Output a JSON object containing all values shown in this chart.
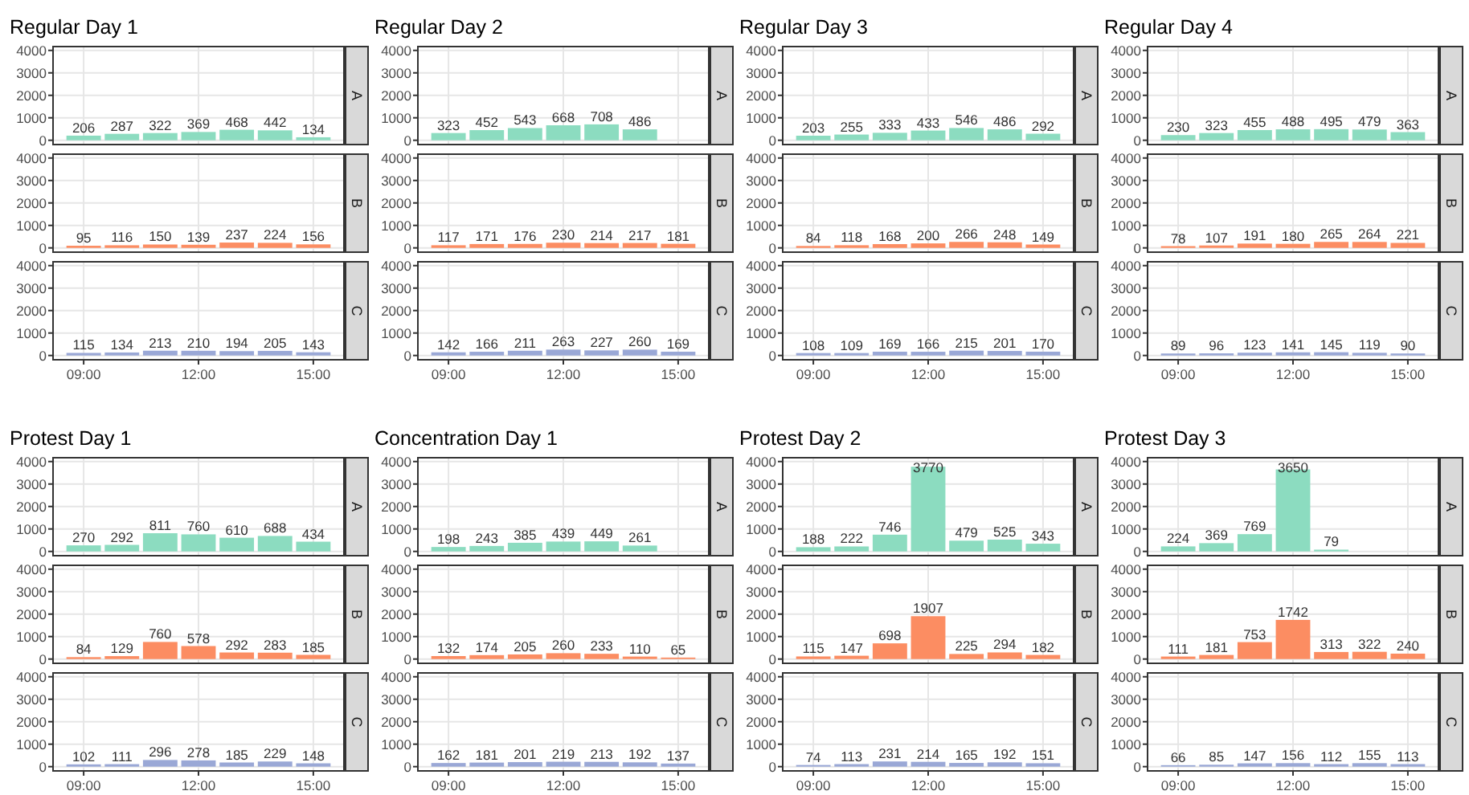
{
  "chart_data": [
    {
      "type": "bar",
      "title": "Regular Day 1",
      "y2label": "A",
      "x": [
        9,
        10,
        11,
        12,
        13,
        14,
        15
      ],
      "values": [
        206,
        287,
        322,
        369,
        468,
        442,
        134
      ],
      "color": "#8cdcc0",
      "xlim": [
        8.2,
        15.8
      ],
      "xticks": [
        9,
        12,
        15
      ],
      "ylim": [
        -190,
        4170
      ],
      "yticks": [
        0,
        1000,
        2000,
        3000,
        4000
      ],
      "grid": true,
      "data_labels": true,
      "tick_labels": "y"
    },
    {
      "type": "bar",
      "y2label": "B",
      "x": [
        9,
        10,
        11,
        12,
        13,
        14,
        15
      ],
      "values": [
        95,
        116,
        150,
        139,
        237,
        224,
        156
      ],
      "color": "#fc8d62",
      "xlim": [
        8.2,
        15.8
      ],
      "xticks": [
        9,
        12,
        15
      ],
      "ylim": [
        -190,
        4170
      ],
      "yticks": [
        0,
        1000,
        2000,
        3000,
        4000
      ],
      "grid": true,
      "data_labels": true,
      "tick_labels": "y"
    },
    {
      "type": "bar",
      "y2label": "C",
      "x": [
        9,
        10,
        11,
        12,
        13,
        14,
        15
      ],
      "values": [
        115,
        134,
        213,
        210,
        194,
        205,
        143
      ],
      "color": "#9aa8d6",
      "xlim": [
        8.2,
        15.8
      ],
      "xticks": [
        {
          "value": 9,
          "label": "09:00"
        },
        {
          "value": 12,
          "label": "12:00"
        },
        {
          "value": 15,
          "label": "15:00"
        }
      ],
      "ylim": [
        -190,
        4170
      ],
      "yticks": [
        0,
        1000,
        2000,
        3000,
        4000
      ],
      "grid": true,
      "data_labels": true
    },
    {
      "type": "bar",
      "title": "Regular Day 2",
      "y2label": "A",
      "x": [
        9,
        10,
        11,
        12,
        13,
        14
      ],
      "values": [
        323,
        452,
        543,
        668,
        708,
        486
      ],
      "color": "#8cdcc0",
      "xlim": [
        8.2,
        15.8
      ],
      "xticks": [
        9,
        12,
        15
      ],
      "ylim": [
        -190,
        4170
      ],
      "yticks": [
        0,
        1000,
        2000,
        3000,
        4000
      ],
      "grid": true,
      "data_labels": true,
      "tick_labels": "y"
    },
    {
      "type": "bar",
      "y2label": "B",
      "x": [
        9,
        10,
        11,
        12,
        13,
        14,
        15
      ],
      "values": [
        117,
        171,
        176,
        230,
        214,
        217,
        181
      ],
      "color": "#fc8d62",
      "xlim": [
        8.2,
        15.8
      ],
      "xticks": [
        9,
        12,
        15
      ],
      "ylim": [
        -190,
        4170
      ],
      "yticks": [
        0,
        1000,
        2000,
        3000,
        4000
      ],
      "grid": true,
      "data_labels": true,
      "tick_labels": "y"
    },
    {
      "type": "bar",
      "y2label": "C",
      "x": [
        9,
        10,
        11,
        12,
        13,
        14,
        15
      ],
      "values": [
        142,
        166,
        211,
        263,
        227,
        260,
        169
      ],
      "color": "#9aa8d6",
      "xlim": [
        8.2,
        15.8
      ],
      "xticks": [
        {
          "value": 9,
          "label": "09:00"
        },
        {
          "value": 12,
          "label": "12:00"
        },
        {
          "value": 15,
          "label": "15:00"
        }
      ],
      "ylim": [
        -190,
        4170
      ],
      "yticks": [
        0,
        1000,
        2000,
        3000,
        4000
      ],
      "grid": true,
      "data_labels": true
    },
    {
      "type": "bar",
      "title": "Regular Day 3",
      "y2label": "A",
      "x": [
        9,
        10,
        11,
        12,
        13,
        14,
        15
      ],
      "values": [
        203,
        255,
        333,
        433,
        546,
        486,
        292
      ],
      "color": "#8cdcc0",
      "xlim": [
        8.2,
        15.8
      ],
      "xticks": [
        9,
        12,
        15
      ],
      "ylim": [
        -190,
        4170
      ],
      "yticks": [
        0,
        1000,
        2000,
        3000,
        4000
      ],
      "grid": true,
      "data_labels": true,
      "tick_labels": "y"
    },
    {
      "type": "bar",
      "y2label": "B",
      "x": [
        9,
        10,
        11,
        12,
        13,
        14,
        15
      ],
      "values": [
        84,
        118,
        168,
        200,
        266,
        248,
        149
      ],
      "color": "#fc8d62",
      "xlim": [
        8.2,
        15.8
      ],
      "xticks": [
        9,
        12,
        15
      ],
      "ylim": [
        -190,
        4170
      ],
      "yticks": [
        0,
        1000,
        2000,
        3000,
        4000
      ],
      "grid": true,
      "data_labels": true,
      "tick_labels": "y"
    },
    {
      "type": "bar",
      "y2label": "C",
      "x": [
        9,
        10,
        11,
        12,
        13,
        14,
        15
      ],
      "values": [
        108,
        109,
        169,
        166,
        215,
        201,
        170
      ],
      "color": "#9aa8d6",
      "xlim": [
        8.2,
        15.8
      ],
      "xticks": [
        {
          "value": 9,
          "label": "09:00"
        },
        {
          "value": 12,
          "label": "12:00"
        },
        {
          "value": 15,
          "label": "15:00"
        }
      ],
      "ylim": [
        -190,
        4170
      ],
      "yticks": [
        0,
        1000,
        2000,
        3000,
        4000
      ],
      "grid": true,
      "data_labels": true
    },
    {
      "type": "bar",
      "title": "Regular Day 4",
      "y2label": "A",
      "x": [
        9,
        10,
        11,
        12,
        13,
        14,
        15
      ],
      "values": [
        230,
        323,
        455,
        488,
        495,
        479,
        363
      ],
      "color": "#8cdcc0",
      "xlim": [
        8.2,
        15.8
      ],
      "xticks": [
        9,
        12,
        15
      ],
      "ylim": [
        -190,
        4170
      ],
      "yticks": [
        0,
        1000,
        2000,
        3000,
        4000
      ],
      "grid": true,
      "data_labels": true,
      "tick_labels": "y"
    },
    {
      "type": "bar",
      "y2label": "B",
      "x": [
        9,
        10,
        11,
        12,
        13,
        14,
        15
      ],
      "values": [
        78,
        107,
        191,
        180,
        265,
        264,
        221
      ],
      "color": "#fc8d62",
      "xlim": [
        8.2,
        15.8
      ],
      "xticks": [
        9,
        12,
        15
      ],
      "ylim": [
        -190,
        4170
      ],
      "yticks": [
        0,
        1000,
        2000,
        3000,
        4000
      ],
      "grid": true,
      "data_labels": true,
      "tick_labels": "y"
    },
    {
      "type": "bar",
      "y2label": "C",
      "x": [
        9,
        10,
        11,
        12,
        13,
        14,
        15
      ],
      "values": [
        89,
        96,
        123,
        141,
        145,
        119,
        90
      ],
      "color": "#9aa8d6",
      "xlim": [
        8.2,
        15.8
      ],
      "xticks": [
        {
          "value": 9,
          "label": "09:00"
        },
        {
          "value": 12,
          "label": "12:00"
        },
        {
          "value": 15,
          "label": "15:00"
        }
      ],
      "ylim": [
        -190,
        4170
      ],
      "yticks": [
        0,
        1000,
        2000,
        3000,
        4000
      ],
      "grid": true,
      "data_labels": true
    },
    {
      "type": "bar",
      "title": "Protest Day 1",
      "y2label": "A",
      "x": [
        9,
        10,
        11,
        12,
        13,
        14,
        15
      ],
      "values": [
        270,
        292,
        811,
        760,
        610,
        688,
        434
      ],
      "color": "#8cdcc0",
      "xlim": [
        8.2,
        15.8
      ],
      "xticks": [
        9,
        12,
        15
      ],
      "ylim": [
        -190,
        4170
      ],
      "yticks": [
        0,
        1000,
        2000,
        3000,
        4000
      ],
      "grid": true,
      "data_labels": true,
      "tick_labels": "y"
    },
    {
      "type": "bar",
      "y2label": "B",
      "x": [
        9,
        10,
        11,
        12,
        13,
        14,
        15
      ],
      "values": [
        84,
        129,
        760,
        578,
        292,
        283,
        185
      ],
      "color": "#fc8d62",
      "xlim": [
        8.2,
        15.8
      ],
      "xticks": [
        9,
        12,
        15
      ],
      "ylim": [
        -190,
        4170
      ],
      "yticks": [
        0,
        1000,
        2000,
        3000,
        4000
      ],
      "grid": true,
      "data_labels": true,
      "tick_labels": "y"
    },
    {
      "type": "bar",
      "y2label": "C",
      "x": [
        9,
        10,
        11,
        12,
        13,
        14,
        15
      ],
      "values": [
        102,
        111,
        296,
        278,
        185,
        229,
        148
      ],
      "color": "#9aa8d6",
      "xlim": [
        8.2,
        15.8
      ],
      "xticks": [
        {
          "value": 9,
          "label": "09:00"
        },
        {
          "value": 12,
          "label": "12:00"
        },
        {
          "value": 15,
          "label": "15:00"
        }
      ],
      "ylim": [
        -190,
        4170
      ],
      "yticks": [
        0,
        1000,
        2000,
        3000,
        4000
      ],
      "grid": true,
      "data_labels": true
    },
    {
      "type": "bar",
      "title": "Concentration Day 1",
      "y2label": "A",
      "x": [
        9,
        10,
        11,
        12,
        13,
        14
      ],
      "values": [
        198,
        243,
        385,
        439,
        449,
        261
      ],
      "color": "#8cdcc0",
      "xlim": [
        8.2,
        15.8
      ],
      "xticks": [
        9,
        12,
        15
      ],
      "ylim": [
        -190,
        4170
      ],
      "yticks": [
        0,
        1000,
        2000,
        3000,
        4000
      ],
      "grid": true,
      "data_labels": true,
      "tick_labels": "y"
    },
    {
      "type": "bar",
      "y2label": "B",
      "x": [
        9,
        10,
        11,
        12,
        13,
        14,
        15
      ],
      "values": [
        132,
        174,
        205,
        260,
        233,
        110,
        65
      ],
      "color": "#fc8d62",
      "xlim": [
        8.2,
        15.8
      ],
      "xticks": [
        9,
        12,
        15
      ],
      "ylim": [
        -190,
        4170
      ],
      "yticks": [
        0,
        1000,
        2000,
        3000,
        4000
      ],
      "grid": true,
      "data_labels": true,
      "tick_labels": "y"
    },
    {
      "type": "bar",
      "y2label": "C",
      "x": [
        9,
        10,
        11,
        12,
        13,
        14,
        15
      ],
      "values": [
        162,
        181,
        201,
        219,
        213,
        192,
        137
      ],
      "color": "#9aa8d6",
      "xlim": [
        8.2,
        15.8
      ],
      "xticks": [
        {
          "value": 9,
          "label": "09:00"
        },
        {
          "value": 12,
          "label": "12:00"
        },
        {
          "value": 15,
          "label": "15:00"
        }
      ],
      "ylim": [
        -190,
        4170
      ],
      "yticks": [
        0,
        1000,
        2000,
        3000,
        4000
      ],
      "grid": true,
      "data_labels": true
    },
    {
      "type": "bar",
      "title": "Protest Day 2",
      "y2label": "A",
      "x": [
        9,
        10,
        11,
        12,
        13,
        14,
        15
      ],
      "values": [
        188,
        222,
        746,
        3770,
        479,
        525,
        343
      ],
      "color": "#8cdcc0",
      "xlim": [
        8.2,
        15.8
      ],
      "xticks": [
        9,
        12,
        15
      ],
      "ylim": [
        -190,
        4170
      ],
      "yticks": [
        0,
        1000,
        2000,
        3000,
        4000
      ],
      "grid": true,
      "data_labels": true,
      "tick_labels": "y"
    },
    {
      "type": "bar",
      "y2label": "B",
      "x": [
        9,
        10,
        11,
        12,
        13,
        14,
        15
      ],
      "values": [
        115,
        147,
        698,
        1907,
        225,
        294,
        182
      ],
      "color": "#fc8d62",
      "xlim": [
        8.2,
        15.8
      ],
      "xticks": [
        9,
        12,
        15
      ],
      "ylim": [
        -190,
        4170
      ],
      "yticks": [
        0,
        1000,
        2000,
        3000,
        4000
      ],
      "grid": true,
      "data_labels": true,
      "tick_labels": "y"
    },
    {
      "type": "bar",
      "y2label": "C",
      "x": [
        9,
        10,
        11,
        12,
        13,
        14,
        15
      ],
      "values": [
        74,
        113,
        231,
        214,
        165,
        192,
        151
      ],
      "color": "#9aa8d6",
      "xlim": [
        8.2,
        15.8
      ],
      "xticks": [
        {
          "value": 9,
          "label": "09:00"
        },
        {
          "value": 12,
          "label": "12:00"
        },
        {
          "value": 15,
          "label": "15:00"
        }
      ],
      "ylim": [
        -190,
        4170
      ],
      "yticks": [
        0,
        1000,
        2000,
        3000,
        4000
      ],
      "grid": true,
      "data_labels": true
    },
    {
      "type": "bar",
      "title": "Protest Day 3",
      "y2label": "A",
      "x": [
        9,
        10,
        11,
        12,
        13
      ],
      "values": [
        224,
        369,
        769,
        3650,
        79
      ],
      "color": "#8cdcc0",
      "xlim": [
        8.2,
        15.8
      ],
      "xticks": [
        9,
        12,
        15
      ],
      "ylim": [
        -190,
        4170
      ],
      "yticks": [
        0,
        1000,
        2000,
        3000,
        4000
      ],
      "grid": true,
      "data_labels": true,
      "tick_labels": "y"
    },
    {
      "type": "bar",
      "y2label": "B",
      "x": [
        9,
        10,
        11,
        12,
        13,
        14,
        15
      ],
      "values": [
        111,
        181,
        753,
        1742,
        313,
        322,
        240
      ],
      "color": "#fc8d62",
      "xlim": [
        8.2,
        15.8
      ],
      "xticks": [
        9,
        12,
        15
      ],
      "ylim": [
        -190,
        4170
      ],
      "yticks": [
        0,
        1000,
        2000,
        3000,
        4000
      ],
      "grid": true,
      "data_labels": true,
      "tick_labels": "y"
    },
    {
      "type": "bar",
      "y2label": "C",
      "x": [
        9,
        10,
        11,
        12,
        13,
        14,
        15
      ],
      "values": [
        66,
        85,
        147,
        156,
        112,
        155,
        113
      ],
      "color": "#9aa8d6",
      "xlim": [
        8.2,
        15.8
      ],
      "xticks": [
        {
          "value": 9,
          "label": "09:00"
        },
        {
          "value": 12,
          "label": "12:00"
        },
        {
          "value": 15,
          "label": "15:00"
        }
      ],
      "ylim": [
        -190,
        4170
      ],
      "yticks": [
        0,
        1000,
        2000,
        3000,
        4000
      ],
      "grid": true,
      "data_labels": true
    }
  ]
}
